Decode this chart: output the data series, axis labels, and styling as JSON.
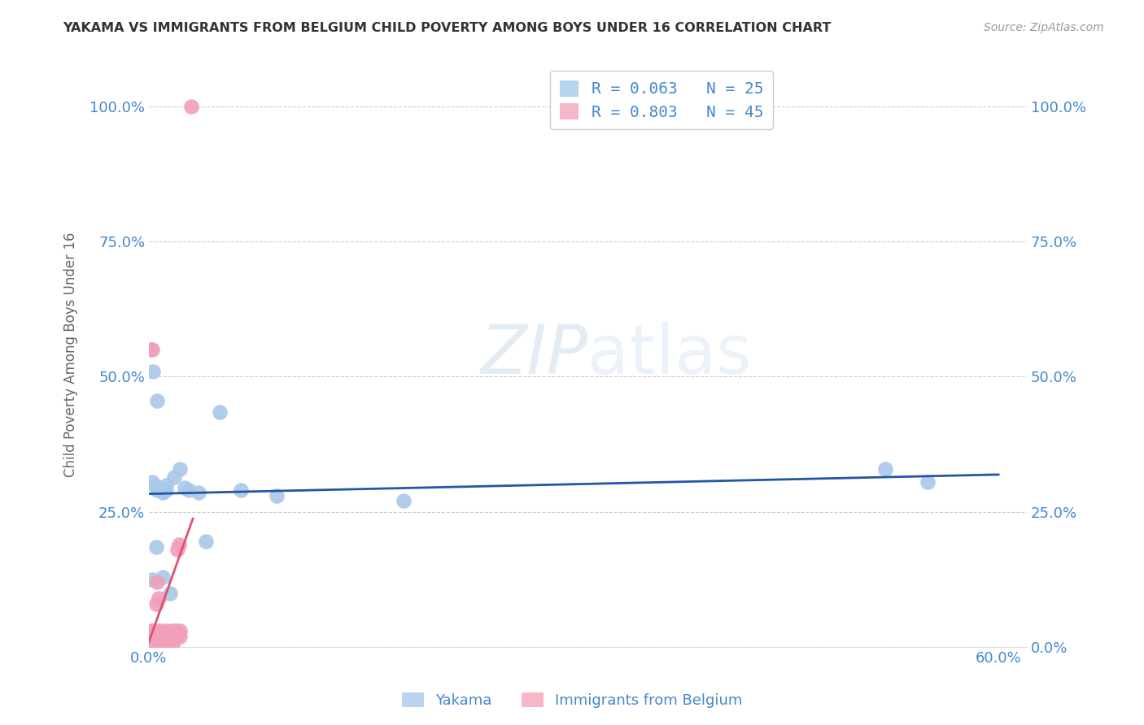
{
  "title": "YAKAMA VS IMMIGRANTS FROM BELGIUM CHILD POVERTY AMONG BOYS UNDER 16 CORRELATION CHART",
  "source": "Source: ZipAtlas.com",
  "ylabel_label": "Child Poverty Among Boys Under 16",
  "xlim": [
    0.0,
    0.62
  ],
  "ylim": [
    0.0,
    1.08
  ],
  "watermark_zip": "ZIP",
  "watermark_atlas": "atlas",
  "legend": [
    {
      "label": "R = 0.063   N = 25",
      "color": "#b8d4ee"
    },
    {
      "label": "R = 0.803   N = 45",
      "color": "#f5b8c8"
    }
  ],
  "legend_bottom": [
    {
      "label": "Yakama",
      "color": "#b8d4ee"
    },
    {
      "label": "Immigrants from Belgium",
      "color": "#f5b8c8"
    }
  ],
  "yakama_x": [
    0.002,
    0.004,
    0.006,
    0.008,
    0.01,
    0.012,
    0.018,
    0.022,
    0.028,
    0.035,
    0.05,
    0.065,
    0.09,
    0.18,
    0.52,
    0.55,
    0.003,
    0.006,
    0.012,
    0.025,
    0.04,
    0.002,
    0.005,
    0.01,
    0.015
  ],
  "yakama_y": [
    0.305,
    0.3,
    0.29,
    0.29,
    0.285,
    0.3,
    0.315,
    0.33,
    0.29,
    0.285,
    0.435,
    0.29,
    0.28,
    0.27,
    0.33,
    0.305,
    0.51,
    0.455,
    0.29,
    0.295,
    0.195,
    0.125,
    0.185,
    0.13,
    0.1
  ],
  "belgium_x": [
    0.001,
    0.001,
    0.002,
    0.002,
    0.003,
    0.003,
    0.003,
    0.004,
    0.004,
    0.005,
    0.005,
    0.005,
    0.006,
    0.006,
    0.006,
    0.007,
    0.007,
    0.008,
    0.008,
    0.009,
    0.009,
    0.01,
    0.01,
    0.011,
    0.012,
    0.012,
    0.013,
    0.014,
    0.015,
    0.016,
    0.017,
    0.018,
    0.019,
    0.02,
    0.021,
    0.022,
    0.001,
    0.002,
    0.003,
    0.004,
    0.005,
    0.006,
    0.007,
    0.022,
    0.03
  ],
  "belgium_y": [
    0.01,
    0.02,
    0.01,
    0.03,
    0.02,
    0.01,
    0.03,
    0.02,
    0.01,
    0.02,
    0.01,
    0.03,
    0.01,
    0.02,
    0.03,
    0.02,
    0.01,
    0.02,
    0.03,
    0.02,
    0.01,
    0.01,
    0.02,
    0.02,
    0.01,
    0.03,
    0.02,
    0.01,
    0.02,
    0.03,
    0.01,
    0.02,
    0.03,
    0.18,
    0.19,
    0.02,
    0.55,
    0.55,
    0.03,
    0.02,
    0.08,
    0.12,
    0.09,
    0.03,
    1.0
  ],
  "yakama_line_color": "#2255aa",
  "belgium_line_color": "#e05070",
  "yakama_dot_color": "#aac8e8",
  "belgium_dot_color": "#f0a0b8",
  "background_color": "#ffffff",
  "grid_color": "#cccccc",
  "title_color": "#333333",
  "tick_label_color": "#4488cc"
}
